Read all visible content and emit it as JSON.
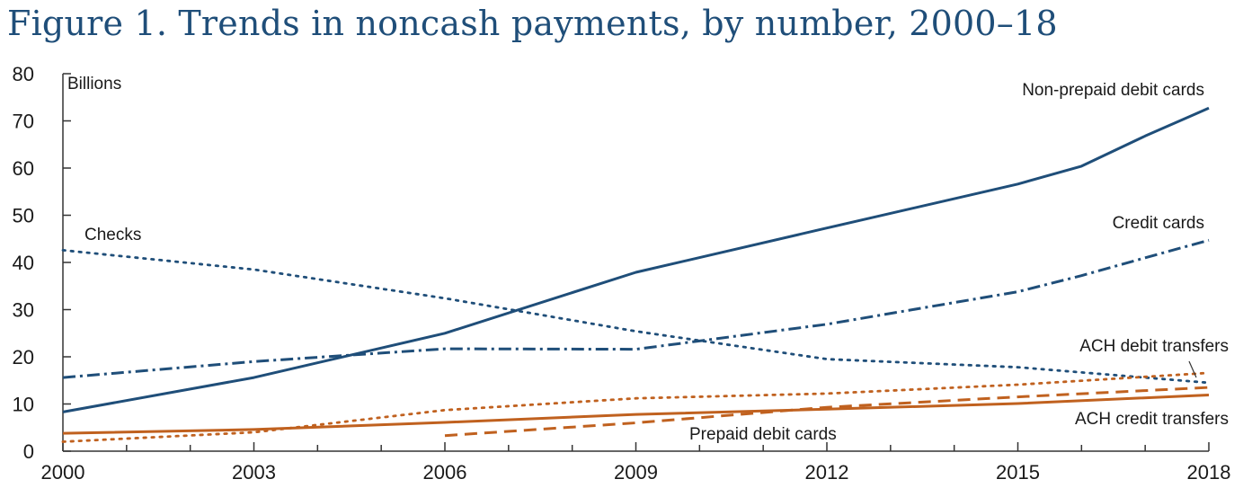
{
  "chart_data": {
    "type": "line",
    "title": "Figure 1. Trends in noncash payments, by number, 2000–18",
    "ylabel": "Billions",
    "xlabel": "",
    "xlim": [
      2000,
      2018
    ],
    "ylim": [
      0,
      80
    ],
    "yticks": [
      0,
      10,
      20,
      30,
      40,
      50,
      60,
      70,
      80
    ],
    "xtick_labels": [
      2000,
      2003,
      2006,
      2009,
      2012,
      2015,
      2018
    ],
    "xminor": [
      2000,
      2001,
      2002,
      2003,
      2004,
      2005,
      2006,
      2007,
      2008,
      2009,
      2010,
      2011,
      2012,
      2013,
      2014,
      2015,
      2016,
      2017,
      2018
    ],
    "series": [
      {
        "name": "Non-prepaid debit cards",
        "color": "#1f4e79",
        "style": "solid",
        "x": [
          2000,
          2003,
          2006,
          2009,
          2012,
          2015,
          2016,
          2017,
          2018
        ],
        "y": [
          8.3,
          15.6,
          25.0,
          37.9,
          47.3,
          56.6,
          60.4,
          66.8,
          72.7
        ]
      },
      {
        "name": "Credit cards",
        "color": "#1f4e79",
        "style": "dashdot",
        "x": [
          2000,
          2003,
          2006,
          2009,
          2012,
          2015,
          2016,
          2017,
          2018
        ],
        "y": [
          15.6,
          19.0,
          21.7,
          21.6,
          26.9,
          33.8,
          37.2,
          41.0,
          44.7
        ]
      },
      {
        "name": "Checks",
        "color": "#1f4e79",
        "style": "dotted",
        "x": [
          2000,
          2003,
          2006,
          2009,
          2012,
          2015,
          2018
        ],
        "y": [
          42.6,
          38.5,
          32.4,
          25.4,
          19.5,
          17.8,
          14.5
        ]
      },
      {
        "name": "ACH debit transfers",
        "color": "#c0611f",
        "style": "dotted",
        "x": [
          2000,
          2003,
          2006,
          2009,
          2012,
          2015,
          2018
        ],
        "y": [
          2.0,
          4.0,
          8.7,
          11.2,
          12.2,
          14.1,
          16.6
        ]
      },
      {
        "name": "Prepaid debit cards",
        "color": "#c0611f",
        "style": "dashed",
        "x": [
          2006,
          2009,
          2012,
          2015,
          2018
        ],
        "y": [
          3.3,
          6.0,
          9.3,
          11.5,
          13.5
        ]
      },
      {
        "name": "ACH credit transfers",
        "color": "#c0611f",
        "style": "solid",
        "x": [
          2000,
          2003,
          2006,
          2009,
          2012,
          2015,
          2018
        ],
        "y": [
          3.8,
          4.6,
          6.1,
          7.8,
          8.9,
          10.1,
          11.9
        ]
      }
    ],
    "annotations": [
      {
        "text": "Non-prepaid debit cards",
        "series": "Non-prepaid debit cards"
      },
      {
        "text": "Credit cards",
        "series": "Credit cards"
      },
      {
        "text": "Checks",
        "series": "Checks"
      },
      {
        "text": "ACH debit transfers",
        "series": "ACH debit transfers"
      },
      {
        "text": "Prepaid debit cards",
        "series": "Prepaid debit cards"
      },
      {
        "text": "ACH credit transfers",
        "series": "ACH credit transfers"
      }
    ]
  }
}
